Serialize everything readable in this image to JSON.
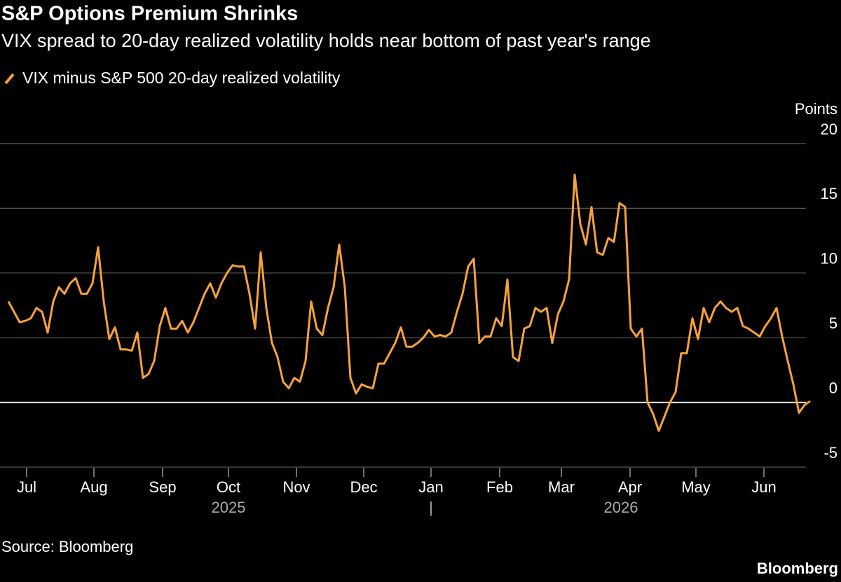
{
  "chart_data": {
    "type": "line",
    "title": "S&P Options Premium Shrinks",
    "subtitle": "VIX spread to 20-day realized volatility holds near bottom of past year's range",
    "y_axis_label": "Points",
    "source": "Source: Bloomberg",
    "brand": "Bloomberg",
    "series": [
      {
        "name": "VIX minus S&P 500 20-day realized volatility",
        "color": "#f7a23b",
        "values": [
          7.8,
          7.0,
          6.2,
          6.3,
          6.5,
          7.3,
          7.0,
          5.4,
          7.8,
          8.9,
          8.4,
          9.2,
          9.6,
          8.4,
          8.4,
          9.2,
          12.0,
          7.8,
          4.9,
          5.8,
          4.1,
          4.1,
          4.0,
          5.4,
          1.9,
          2.2,
          3.2,
          5.9,
          7.3,
          5.7,
          5.7,
          6.3,
          5.4,
          6.2,
          7.3,
          8.4,
          9.2,
          8.1,
          9.2,
          10.0,
          10.6,
          10.5,
          10.5,
          8.4,
          5.7,
          11.6,
          7.3,
          4.6,
          3.5,
          1.6,
          1.1,
          1.9,
          1.6,
          3.2,
          7.8,
          5.7,
          5.2,
          7.3,
          8.9,
          12.2,
          8.9,
          1.9,
          0.7,
          1.4,
          1.2,
          1.1,
          3.0,
          3.0,
          3.8,
          4.6,
          5.8,
          4.3,
          4.3,
          4.6,
          5.0,
          5.6,
          5.1,
          5.2,
          5.1,
          5.4,
          7.0,
          8.4,
          10.5,
          11.1,
          4.6,
          5.1,
          5.1,
          6.5,
          5.9,
          9.5,
          3.5,
          3.2,
          5.7,
          5.9,
          7.3,
          7.0,
          7.3,
          4.6,
          6.8,
          7.8,
          9.5,
          17.6,
          13.8,
          12.2,
          15.1,
          11.6,
          11.4,
          12.7,
          12.4,
          15.4,
          15.1,
          5.7,
          5.1,
          5.7,
          0.0,
          -0.9,
          -2.2,
          -1.1,
          0.0,
          0.8,
          3.8,
          3.8,
          6.5,
          4.9,
          7.3,
          6.2,
          7.3,
          7.8,
          7.3,
          7.0,
          7.3,
          5.9,
          5.7,
          5.4,
          5.1,
          5.9,
          6.5,
          7.3,
          5.1,
          3.2,
          1.4,
          -0.8,
          -0.2,
          0.1
        ]
      }
    ],
    "xlim": [
      0,
      143
    ],
    "xticks": [
      {
        "value": 3.25,
        "label": "Jul"
      },
      {
        "value": 15.25,
        "label": "Aug"
      },
      {
        "value": 27.5,
        "label": "Sep"
      },
      {
        "value": 39.25,
        "label": "Oct"
      },
      {
        "value": 51.375,
        "label": "Nov"
      },
      {
        "value": 63.375,
        "label": "Dec"
      },
      {
        "value": 75.375,
        "label": "Jan"
      },
      {
        "value": 87.625,
        "label": "Feb"
      },
      {
        "value": 98.625,
        "label": "Mar"
      },
      {
        "value": 110.875,
        "label": "Apr"
      },
      {
        "value": 122.625,
        "label": "May"
      },
      {
        "value": 134.75,
        "label": "Jun"
      }
    ],
    "year_labels": [
      {
        "value": 39.25,
        "label": "2025"
      },
      {
        "value": 75.375,
        "label": "|"
      },
      {
        "value": 109.25,
        "label": "2026"
      }
    ],
    "ylim": [
      -5,
      20
    ],
    "yticks": [
      20,
      15,
      10,
      5,
      0,
      -5
    ],
    "grid": true
  }
}
